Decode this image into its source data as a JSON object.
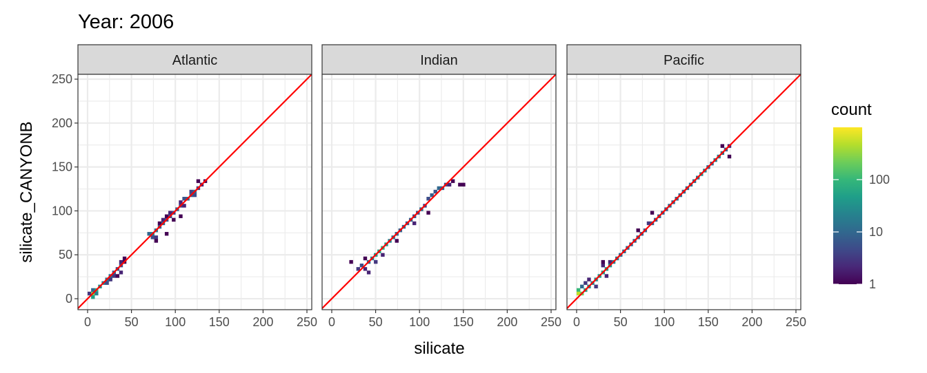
{
  "chart_data": {
    "type": "heatmap",
    "subtype": "bin2d-faceted",
    "title": "Year: 2006",
    "xlabel": "silicate",
    "ylabel": "silicate_CANYONB",
    "xlim": [
      -11,
      255.5
    ],
    "ylim": [
      -12.5,
      255.5
    ],
    "x_ticks": [
      0,
      50,
      100,
      150,
      200,
      250
    ],
    "y_ticks": [
      0,
      50,
      100,
      150,
      200,
      250
    ],
    "grid": true,
    "reference_line": {
      "type": "identity",
      "slope": 1,
      "intercept": 0,
      "color": "#FF0000"
    },
    "bin_width": 4,
    "legend": {
      "title": "count",
      "scale": "log10",
      "palette": "viridis",
      "limits": [
        1,
        1000
      ],
      "ticks": [
        1,
        10,
        100
      ],
      "tick_labels": [
        "1",
        "10",
        "100"
      ],
      "placement": "right"
    },
    "panels": [
      {
        "label": "Atlantic",
        "bins": [
          [
            2,
            6,
            3
          ],
          [
            6,
            6,
            300
          ],
          [
            6,
            2,
            50
          ],
          [
            10,
            10,
            80
          ],
          [
            10,
            6,
            20
          ],
          [
            6,
            10,
            10
          ],
          [
            14,
            14,
            30
          ],
          [
            18,
            18,
            20
          ],
          [
            22,
            22,
            15
          ],
          [
            22,
            18,
            5
          ],
          [
            26,
            26,
            12
          ],
          [
            26,
            22,
            3
          ],
          [
            30,
            30,
            8
          ],
          [
            30,
            26,
            3
          ],
          [
            34,
            34,
            6
          ],
          [
            34,
            26,
            1
          ],
          [
            38,
            38,
            5
          ],
          [
            38,
            42,
            2
          ],
          [
            42,
            42,
            1
          ],
          [
            42,
            46,
            1
          ],
          [
            38,
            30,
            2
          ],
          [
            70,
            74,
            10
          ],
          [
            74,
            74,
            20
          ],
          [
            74,
            70,
            5
          ],
          [
            78,
            78,
            15
          ],
          [
            78,
            70,
            3
          ],
          [
            82,
            82,
            8
          ],
          [
            82,
            86,
            1
          ],
          [
            86,
            86,
            10
          ],
          [
            86,
            90,
            2
          ],
          [
            90,
            90,
            6
          ],
          [
            90,
            94,
            1
          ],
          [
            94,
            94,
            5
          ],
          [
            94,
            98,
            2
          ],
          [
            98,
            98,
            4
          ],
          [
            98,
            90,
            1
          ],
          [
            102,
            102,
            8
          ],
          [
            106,
            106,
            4
          ],
          [
            106,
            110,
            2
          ],
          [
            110,
            114,
            6
          ],
          [
            110,
            106,
            2
          ],
          [
            114,
            114,
            10
          ],
          [
            118,
            118,
            8
          ],
          [
            118,
            122,
            4
          ],
          [
            122,
            122,
            10
          ],
          [
            122,
            118,
            5
          ],
          [
            126,
            126,
            3
          ],
          [
            126,
            134,
            1
          ],
          [
            130,
            130,
            2
          ],
          [
            134,
            134,
            1
          ],
          [
            106,
            94,
            1
          ],
          [
            78,
            66,
            1
          ],
          [
            90,
            74,
            1
          ]
        ]
      },
      {
        "label": "Indian",
        "bins": [
          [
            22,
            42,
            1
          ],
          [
            30,
            34,
            3
          ],
          [
            34,
            38,
            5
          ],
          [
            38,
            34,
            2
          ],
          [
            42,
            42,
            10
          ],
          [
            46,
            46,
            20
          ],
          [
            50,
            50,
            40
          ],
          [
            54,
            54,
            60
          ],
          [
            58,
            58,
            80
          ],
          [
            62,
            62,
            40
          ],
          [
            50,
            42,
            3
          ],
          [
            58,
            50,
            2
          ],
          [
            66,
            66,
            20
          ],
          [
            70,
            70,
            15
          ],
          [
            74,
            74,
            10
          ],
          [
            78,
            78,
            8
          ],
          [
            82,
            82,
            10
          ],
          [
            86,
            86,
            8
          ],
          [
            90,
            90,
            8
          ],
          [
            94,
            94,
            6
          ],
          [
            98,
            98,
            5
          ],
          [
            102,
            102,
            10
          ],
          [
            106,
            106,
            4
          ],
          [
            110,
            114,
            5
          ],
          [
            114,
            118,
            8
          ],
          [
            118,
            122,
            6
          ],
          [
            122,
            126,
            10
          ],
          [
            126,
            126,
            8
          ],
          [
            130,
            130,
            5
          ],
          [
            134,
            130,
            2
          ],
          [
            138,
            134,
            1
          ],
          [
            146,
            130,
            1
          ],
          [
            150,
            130,
            1
          ],
          [
            74,
            66,
            1
          ],
          [
            94,
            86,
            2
          ],
          [
            110,
            98,
            1
          ],
          [
            42,
            30,
            2
          ],
          [
            38,
            46,
            1
          ]
        ]
      },
      {
        "label": "Pacific",
        "bins": [
          [
            2,
            10,
            100
          ],
          [
            2,
            6,
            500
          ],
          [
            6,
            6,
            200
          ],
          [
            6,
            14,
            10
          ],
          [
            10,
            10,
            60
          ],
          [
            14,
            14,
            30
          ],
          [
            10,
            18,
            3
          ],
          [
            14,
            22,
            2
          ],
          [
            18,
            18,
            25
          ],
          [
            22,
            22,
            30
          ],
          [
            22,
            14,
            3
          ],
          [
            26,
            26,
            40
          ],
          [
            30,
            30,
            50
          ],
          [
            30,
            38,
            2
          ],
          [
            34,
            34,
            40
          ],
          [
            34,
            26,
            2
          ],
          [
            38,
            38,
            30
          ],
          [
            38,
            42,
            2
          ],
          [
            42,
            42,
            20
          ],
          [
            46,
            46,
            15
          ],
          [
            50,
            50,
            10
          ],
          [
            54,
            54,
            10
          ],
          [
            58,
            58,
            10
          ],
          [
            62,
            62,
            8
          ],
          [
            66,
            66,
            8
          ],
          [
            70,
            70,
            8
          ],
          [
            74,
            74,
            8
          ],
          [
            78,
            78,
            8
          ],
          [
            82,
            86,
            3
          ],
          [
            86,
            86,
            8
          ],
          [
            90,
            90,
            8
          ],
          [
            94,
            94,
            8
          ],
          [
            98,
            98,
            8
          ],
          [
            102,
            102,
            8
          ],
          [
            106,
            106,
            10
          ],
          [
            110,
            110,
            10
          ],
          [
            114,
            114,
            10
          ],
          [
            118,
            118,
            10
          ],
          [
            122,
            122,
            10
          ],
          [
            126,
            126,
            10
          ],
          [
            130,
            130,
            12
          ],
          [
            134,
            134,
            12
          ],
          [
            138,
            138,
            15
          ],
          [
            142,
            142,
            30
          ],
          [
            146,
            146,
            20
          ],
          [
            150,
            150,
            10
          ],
          [
            154,
            154,
            10
          ],
          [
            158,
            158,
            20
          ],
          [
            162,
            162,
            20
          ],
          [
            166,
            166,
            15
          ],
          [
            170,
            170,
            8
          ],
          [
            174,
            174,
            2
          ],
          [
            166,
            174,
            1
          ],
          [
            174,
            162,
            1
          ],
          [
            70,
            78,
            1
          ],
          [
            86,
            98,
            1
          ],
          [
            30,
            42,
            1
          ]
        ]
      }
    ]
  }
}
